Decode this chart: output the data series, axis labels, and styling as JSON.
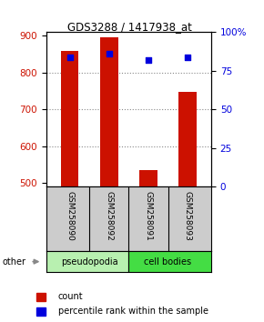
{
  "title": "GDS3288 / 1417938_at",
  "samples": [
    "GSM258090",
    "GSM258092",
    "GSM258091",
    "GSM258093"
  ],
  "group_labels": [
    "pseudopodia",
    "cell bodies"
  ],
  "pseudopodia_color": "#b8f0b0",
  "cell_bodies_color": "#44dd44",
  "counts": [
    860,
    895,
    535,
    748
  ],
  "percentile_ranks": [
    84,
    86,
    82,
    84
  ],
  "ylim_left": [
    490,
    910
  ],
  "ylim_right": [
    0,
    100
  ],
  "yticks_left": [
    500,
    600,
    700,
    800,
    900
  ],
  "yticks_right": [
    0,
    25,
    50,
    75,
    100
  ],
  "yright_labels": [
    "0",
    "25",
    "50",
    "75",
    "100%"
  ],
  "bar_color": "#cc1100",
  "dot_color": "#0000dd",
  "background_color": "#ffffff",
  "left_label_color": "#cc1100",
  "right_label_color": "#0000dd",
  "legend_count_label": "count",
  "legend_pct_label": "percentile rank within the sample",
  "other_label": "other",
  "sample_box_color": "#cccccc",
  "grid_color": "#888888"
}
